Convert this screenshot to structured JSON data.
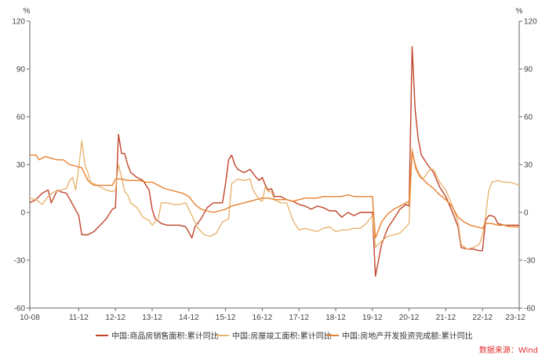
{
  "chart_data": {
    "type": "line",
    "y_unit_left": "%",
    "y_unit_right": "%",
    "ylim": [
      -60,
      120
    ],
    "yticks": [
      -60,
      -30,
      0,
      30,
      60,
      90,
      120
    ],
    "xtick_labels": [
      "10-08",
      "11-12",
      "12-12",
      "13-12",
      "14-12",
      "15-12",
      "16-12",
      "17-12",
      "18-12",
      "19-12",
      "20-12",
      "21-12",
      "22-12",
      "23-12"
    ],
    "xtick_months": [
      0,
      16,
      28,
      40,
      52,
      64,
      76,
      88,
      100,
      112,
      124,
      136,
      148,
      160
    ],
    "x_range_months": [
      0,
      160
    ],
    "grid": false,
    "legend_position": "bottom",
    "series": [
      {
        "name": "中国:商品房销售面积:累计同比",
        "color": "#c0442a",
        "points": [
          [
            0,
            6
          ],
          [
            2,
            8
          ],
          [
            4,
            12
          ],
          [
            6,
            14
          ],
          [
            7,
            6
          ],
          [
            8,
            10
          ],
          [
            9,
            14
          ],
          [
            10,
            13
          ],
          [
            12,
            12
          ],
          [
            14,
            5
          ],
          [
            16,
            -2
          ],
          [
            17,
            -14
          ],
          [
            19,
            -14
          ],
          [
            21,
            -12
          ],
          [
            23,
            -8
          ],
          [
            25,
            -4
          ],
          [
            27,
            2
          ],
          [
            28,
            3
          ],
          [
            29,
            49
          ],
          [
            30,
            37
          ],
          [
            31,
            37
          ],
          [
            32,
            30
          ],
          [
            33,
            25
          ],
          [
            35,
            22
          ],
          [
            37,
            20
          ],
          [
            39,
            14
          ],
          [
            40,
            2
          ],
          [
            41,
            -4
          ],
          [
            43,
            -7
          ],
          [
            45,
            -8
          ],
          [
            47,
            -8
          ],
          [
            49,
            -8
          ],
          [
            51,
            -9
          ],
          [
            53,
            -16
          ],
          [
            54,
            -9
          ],
          [
            56,
            -4
          ],
          [
            58,
            3
          ],
          [
            60,
            6
          ],
          [
            62,
            6
          ],
          [
            63,
            6
          ],
          [
            64,
            18
          ],
          [
            65,
            33
          ],
          [
            66,
            36
          ],
          [
            67,
            30
          ],
          [
            68,
            27
          ],
          [
            70,
            25
          ],
          [
            72,
            27
          ],
          [
            74,
            22
          ],
          [
            75,
            20
          ],
          [
            76,
            22
          ],
          [
            77,
            17
          ],
          [
            78,
            14
          ],
          [
            79,
            15
          ],
          [
            80,
            10
          ],
          [
            82,
            10
          ],
          [
            84,
            8
          ],
          [
            86,
            7
          ],
          [
            88,
            5
          ],
          [
            90,
            4
          ],
          [
            92,
            2
          ],
          [
            94,
            4
          ],
          [
            96,
            3
          ],
          [
            98,
            1
          ],
          [
            100,
            1
          ],
          [
            102,
            -3
          ],
          [
            104,
            0
          ],
          [
            106,
            -2
          ],
          [
            108,
            0
          ],
          [
            110,
            0
          ],
          [
            112,
            0
          ],
          [
            113,
            -40
          ],
          [
            115,
            -20
          ],
          [
            117,
            -10
          ],
          [
            119,
            -4
          ],
          [
            121,
            2
          ],
          [
            123,
            5
          ],
          [
            124,
            4
          ],
          [
            125,
            104
          ],
          [
            126,
            64
          ],
          [
            127,
            46
          ],
          [
            128,
            36
          ],
          [
            130,
            30
          ],
          [
            132,
            25
          ],
          [
            134,
            16
          ],
          [
            136,
            10
          ],
          [
            138,
            1
          ],
          [
            140,
            -9
          ],
          [
            141,
            -22
          ],
          [
            143,
            -23
          ],
          [
            145,
            -23
          ],
          [
            147,
            -24
          ],
          [
            148,
            -24
          ],
          [
            149,
            -5
          ],
          [
            150,
            -2
          ],
          [
            151,
            -2
          ],
          [
            152,
            -3
          ],
          [
            153,
            -7
          ],
          [
            155,
            -8
          ],
          [
            157,
            -8
          ],
          [
            160,
            -8
          ]
        ]
      },
      {
        "name": "中国:房屋竣工面积:累计同比",
        "color": "#e8b472",
        "points": [
          [
            0,
            9
          ],
          [
            2,
            8
          ],
          [
            4,
            5
          ],
          [
            6,
            10
          ],
          [
            8,
            13
          ],
          [
            10,
            14
          ],
          [
            12,
            15
          ],
          [
            13,
            20
          ],
          [
            14,
            22
          ],
          [
            15,
            14
          ],
          [
            16,
            28
          ],
          [
            17,
            45
          ],
          [
            18,
            30
          ],
          [
            19,
            25
          ],
          [
            20,
            18
          ],
          [
            21,
            18
          ],
          [
            23,
            16
          ],
          [
            25,
            14
          ],
          [
            27,
            13
          ],
          [
            28,
            14
          ],
          [
            29,
            30
          ],
          [
            30,
            22
          ],
          [
            31,
            13
          ],
          [
            32,
            11
          ],
          [
            33,
            6
          ],
          [
            35,
            3
          ],
          [
            37,
            -3
          ],
          [
            39,
            -5
          ],
          [
            40,
            -8
          ],
          [
            42,
            -4
          ],
          [
            43,
            6
          ],
          [
            45,
            6
          ],
          [
            47,
            5
          ],
          [
            49,
            5
          ],
          [
            51,
            6
          ],
          [
            53,
            -2
          ],
          [
            55,
            -10
          ],
          [
            57,
            -14
          ],
          [
            59,
            -15
          ],
          [
            61,
            -13
          ],
          [
            63,
            -6
          ],
          [
            65,
            -4
          ],
          [
            66,
            18
          ],
          [
            68,
            21
          ],
          [
            70,
            20
          ],
          [
            72,
            21
          ],
          [
            73,
            14
          ],
          [
            75,
            8
          ],
          [
            76,
            7
          ],
          [
            77,
            16
          ],
          [
            78,
            13
          ],
          [
            79,
            13
          ],
          [
            80,
            8
          ],
          [
            82,
            6
          ],
          [
            84,
            6
          ],
          [
            86,
            -5
          ],
          [
            88,
            -11
          ],
          [
            90,
            -10
          ],
          [
            92,
            -11
          ],
          [
            94,
            -12
          ],
          [
            96,
            -10
          ],
          [
            98,
            -9
          ],
          [
            100,
            -12
          ],
          [
            102,
            -11
          ],
          [
            104,
            -11
          ],
          [
            106,
            -10
          ],
          [
            108,
            -10
          ],
          [
            110,
            -7
          ],
          [
            112,
            -2
          ],
          [
            113,
            -22
          ],
          [
            115,
            -18
          ],
          [
            117,
            -15
          ],
          [
            119,
            -14
          ],
          [
            121,
            -13
          ],
          [
            123,
            -9
          ],
          [
            124,
            -7
          ],
          [
            125,
            40
          ],
          [
            126,
            28
          ],
          [
            127,
            24
          ],
          [
            128,
            21
          ],
          [
            129,
            22
          ],
          [
            130,
            25
          ],
          [
            131,
            27
          ],
          [
            132,
            27
          ],
          [
            134,
            19
          ],
          [
            136,
            14
          ],
          [
            138,
            5
          ],
          [
            140,
            -6
          ],
          [
            141,
            -20
          ],
          [
            143,
            -23
          ],
          [
            145,
            -22
          ],
          [
            147,
            -20
          ],
          [
            148,
            -14
          ],
          [
            149,
            -3
          ],
          [
            150,
            13
          ],
          [
            151,
            19
          ],
          [
            153,
            20
          ],
          [
            155,
            19
          ],
          [
            157,
            19
          ],
          [
            160,
            17
          ]
        ]
      },
      {
        "name": "中国:房地产开发投资完成额:累计同比",
        "color": "#e9802e",
        "points": [
          [
            0,
            36
          ],
          [
            2,
            36
          ],
          [
            3,
            33
          ],
          [
            5,
            35
          ],
          [
            7,
            34
          ],
          [
            9,
            33
          ],
          [
            11,
            33
          ],
          [
            13,
            30
          ],
          [
            15,
            29
          ],
          [
            17,
            28
          ],
          [
            19,
            20
          ],
          [
            21,
            17
          ],
          [
            23,
            17
          ],
          [
            25,
            17
          ],
          [
            27,
            17
          ],
          [
            28,
            21
          ],
          [
            30,
            21
          ],
          [
            32,
            20
          ],
          [
            34,
            20
          ],
          [
            36,
            20
          ],
          [
            38,
            19
          ],
          [
            40,
            19
          ],
          [
            42,
            17
          ],
          [
            44,
            15
          ],
          [
            46,
            14
          ],
          [
            48,
            13
          ],
          [
            50,
            12
          ],
          [
            52,
            10
          ],
          [
            54,
            5
          ],
          [
            56,
            2
          ],
          [
            58,
            1
          ],
          [
            60,
            0
          ],
          [
            62,
            1
          ],
          [
            64,
            2
          ],
          [
            66,
            4
          ],
          [
            68,
            5
          ],
          [
            70,
            6
          ],
          [
            72,
            7
          ],
          [
            74,
            8
          ],
          [
            76,
            9
          ],
          [
            78,
            9
          ],
          [
            80,
            8
          ],
          [
            82,
            8
          ],
          [
            84,
            8
          ],
          [
            86,
            7
          ],
          [
            88,
            8
          ],
          [
            90,
            9
          ],
          [
            92,
            9
          ],
          [
            94,
            9
          ],
          [
            96,
            10
          ],
          [
            98,
            10
          ],
          [
            100,
            10
          ],
          [
            102,
            10
          ],
          [
            104,
            11
          ],
          [
            106,
            10
          ],
          [
            108,
            10
          ],
          [
            110,
            10
          ],
          [
            112,
            10
          ],
          [
            113,
            -16
          ],
          [
            115,
            -6
          ],
          [
            117,
            -1
          ],
          [
            119,
            2
          ],
          [
            121,
            4
          ],
          [
            123,
            6
          ],
          [
            124,
            7
          ],
          [
            125,
            38
          ],
          [
            126,
            30
          ],
          [
            127,
            25
          ],
          [
            128,
            22
          ],
          [
            130,
            18
          ],
          [
            132,
            15
          ],
          [
            134,
            11
          ],
          [
            136,
            8
          ],
          [
            138,
            4
          ],
          [
            140,
            -3
          ],
          [
            142,
            -6
          ],
          [
            144,
            -8
          ],
          [
            146,
            -9
          ],
          [
            148,
            -10
          ],
          [
            149,
            -7
          ],
          [
            151,
            -7
          ],
          [
            153,
            -8
          ],
          [
            155,
            -8
          ],
          [
            157,
            -9
          ],
          [
            160,
            -9
          ]
        ]
      }
    ]
  },
  "legend": {
    "items": [
      {
        "label": "中国:商品房销售面积:累计同比",
        "color": "#c0442a"
      },
      {
        "label": "中国:房屋竣工面积:累计同比",
        "color": "#e8b472"
      },
      {
        "label": "中国:房地产开发投资完成额:累计同比",
        "color": "#e9802e"
      }
    ]
  },
  "source": {
    "text": "数据来源：Wind",
    "color": "#e03030"
  }
}
